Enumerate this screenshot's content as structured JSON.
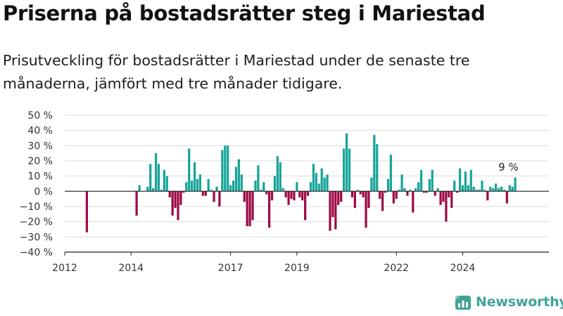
{
  "header": {
    "title": "Priserna på bostadsrätter steg i Mariestad",
    "subtitle": "Prisutveckling för bostadsrätter i Mariestad under de senaste tre månaderna, jämfört med tre månader tidigare."
  },
  "brand": {
    "name": "Newsworthy",
    "icon": "newsworthy-logo-icon"
  },
  "colors": {
    "positive": "#17a499",
    "negative": "#9b0a45",
    "grid": "#dddddd",
    "axis": "#222222"
  },
  "chart_data": {
    "type": "bar",
    "xlim": [
      2012.0,
      2026.6
    ],
    "ylim": [
      -40,
      50
    ],
    "y_ticks": [
      50,
      40,
      30,
      20,
      10,
      0,
      -10,
      -20,
      -30,
      -40
    ],
    "y_tick_labels": [
      "50 %",
      "40 %",
      "30 %",
      "20 %",
      "10 %",
      "0 %",
      "−10 %",
      "−20 %",
      "−30 %",
      "−40 %"
    ],
    "x_ticks": [
      2012,
      2014,
      2017,
      2019,
      2022,
      2024
    ],
    "x_tick_labels": [
      "2012",
      "2014",
      "2017",
      "2019",
      "2022",
      "2024"
    ],
    "grid": true,
    "annotation": {
      "text": "9 %",
      "x": 2025.4,
      "y": 9
    },
    "start": "2012-09",
    "values": [
      -27,
      null,
      null,
      null,
      null,
      null,
      null,
      null,
      null,
      null,
      null,
      null,
      null,
      null,
      null,
      null,
      null,
      null,
      -16,
      4,
      null,
      null,
      3,
      18,
      2,
      25,
      18,
      1,
      14,
      10,
      -4,
      -16,
      -11,
      -19,
      -9,
      -1,
      6,
      28,
      7,
      19,
      8,
      11,
      -3,
      -3,
      8,
      1,
      -7,
      3,
      -10,
      27,
      30,
      30,
      4,
      7,
      16,
      21,
      11,
      -7,
      -23,
      -23,
      -19,
      7,
      17,
      1,
      6,
      -2,
      -24,
      -6,
      10,
      23,
      19,
      2,
      -4,
      -9,
      -5,
      -6,
      6,
      -4,
      -6,
      -19,
      -3,
      6,
      18,
      12,
      5,
      15,
      9,
      11,
      -26,
      -17,
      -25,
      -9,
      -7,
      28,
      38,
      28,
      -4,
      -11,
      1,
      -2,
      -4,
      -24,
      -11,
      9,
      37,
      31,
      -5,
      -13,
      -1,
      8,
      24,
      -8,
      -5,
      1,
      11,
      2,
      -3,
      1,
      -14,
      2,
      6,
      14,
      -1,
      -1,
      8,
      14,
      -3,
      2,
      -9,
      -7,
      -20,
      -4,
      -11,
      7,
      -1,
      15,
      4,
      13,
      4,
      14,
      3,
      1,
      1,
      7,
      1,
      -6,
      3,
      2,
      5,
      2,
      3,
      1,
      -8,
      4,
      3,
      9
    ]
  }
}
